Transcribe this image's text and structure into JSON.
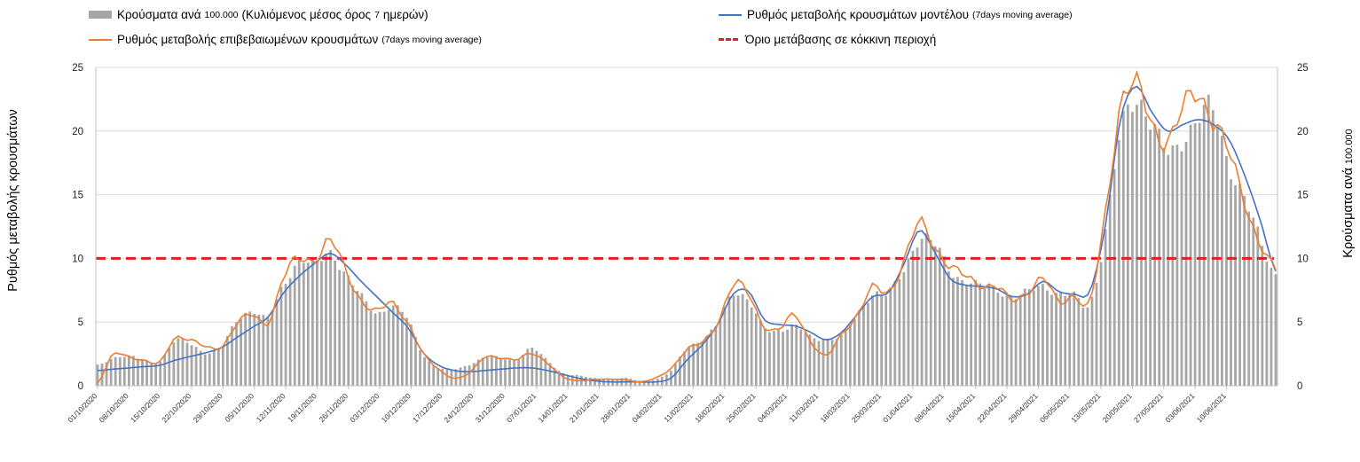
{
  "legend": {
    "bars_label": "Κρούσματα ανά",
    "bars_label_small": "100.000",
    "bars_label_rest": "(Κυλιόμενος μέσος όρος",
    "bars_label_small2": "7",
    "bars_label_end": "ημερών)",
    "orange_label": "Ρυθμός μεταβολής επιβεβαιωμένων κρουσμάτων",
    "orange_label_small": "(7days moving average)",
    "blue_label": "Ρυθμός μεταβολής κρουσμάτων μοντέλου",
    "blue_label_small": "(7days moving average)",
    "red_label": "Όριο μετάβασης σε κόκκινη περιοχή"
  },
  "axes": {
    "left_label": "Ρυθμός μεταβολής κρουσμάτων",
    "right_label": "Κρούσματα ανά",
    "right_label_small": "100.000"
  },
  "colors": {
    "bars": "#a6a6a6",
    "orange": "#ed7d31",
    "blue": "#4472c4",
    "threshold": "#e41f1f",
    "grid": "#d9d9d9"
  },
  "chart_data": {
    "type": "bar+line",
    "title": "",
    "xlabel": "",
    "ylabel_left": "Ρυθμός μεταβολής κρουσμάτων",
    "ylabel_right": "Κρούσματα ανά 100.000",
    "ylim": [
      0,
      25
    ],
    "yticks": [
      0,
      5,
      10,
      15,
      20,
      25
    ],
    "threshold": 10,
    "x_tick_labels": [
      "01/10/2020",
      "08/10/2020",
      "15/10/2020",
      "22/10/2020",
      "29/10/2020",
      "05/11/2020",
      "12/11/2020",
      "19/11/2020",
      "26/11/2020",
      "03/12/2020",
      "10/12/2020",
      "17/12/2020",
      "24/12/2020",
      "31/12/2020",
      "07/01/2021",
      "14/01/2021",
      "21/01/2021",
      "28/01/2021",
      "04/02/2021",
      "11/02/2021",
      "18/02/2021",
      "25/02/2021",
      "04/03/2021",
      "11/03/2021",
      "18/03/2021",
      "25/03/2021",
      "01/04/2021",
      "08/04/2021",
      "15/04/2021",
      "22/04/2021",
      "29/04/2021",
      "06/05/2021",
      "13/05/2021",
      "20/05/2021",
      "27/05/2021",
      "03/06/2021",
      "10/06/2021"
    ],
    "anchors_bars": [
      1.6,
      2.2,
      2.3,
      2.0,
      1.9,
      3.5,
      3.3,
      2.6,
      3.0,
      5.2,
      5.9,
      5.3,
      8.0,
      9.8,
      9.4,
      10.6,
      8.7,
      7.0,
      5.8,
      6.2,
      5.2,
      2.5,
      1.4,
      1.3,
      1.7,
      2.2,
      2.2,
      2.1,
      2.9,
      2.0,
      1.0,
      0.8,
      0.6,
      0.5,
      0.6,
      0.4,
      0.5,
      1.2,
      3.0,
      3.6,
      4.8,
      7.4,
      6.6,
      4.5,
      4.4,
      4.7,
      3.8,
      3.7,
      4.0,
      5.5,
      7.3,
      7.2,
      9.0,
      11.7,
      11.0,
      9.0,
      8.3,
      7.8,
      7.6,
      7.0,
      7.3,
      7.9,
      7.2,
      7.0,
      6.5,
      12.0,
      19.8,
      22.8,
      20.5,
      18.2,
      19.6,
      20.8,
      21.5,
      17.5,
      14.5,
      11.5,
      8.8
    ],
    "anchors_orange": [
      0.2,
      2.4,
      2.3,
      2.0,
      1.8,
      3.8,
      3.6,
      3.0,
      3.1,
      4.9,
      5.5,
      5.0,
      8.5,
      9.9,
      10.0,
      11.3,
      9.0,
      6.8,
      5.8,
      6.5,
      5.0,
      2.5,
      1.3,
      0.6,
      1.0,
      2.3,
      2.2,
      2.0,
      2.6,
      1.8,
      0.7,
      0.4,
      0.5,
      0.5,
      0.5,
      0.3,
      0.6,
      1.4,
      2.8,
      3.4,
      5.0,
      7.8,
      7.2,
      4.7,
      4.4,
      5.6,
      3.5,
      2.3,
      4.1,
      5.6,
      7.6,
      7.4,
      9.8,
      12.6,
      11.0,
      9.4,
      8.5,
      8.0,
      7.8,
      6.6,
      7.5,
      8.4,
      6.5,
      7.2,
      6.5,
      13.3,
      22.5,
      23.4,
      20.5,
      19.5,
      21.5,
      22.9,
      21.0,
      18.0,
      14.5,
      11.2,
      9.0
    ],
    "anchors_blue": [
      1.2,
      1.3,
      1.4,
      1.5,
      1.6,
      2.0,
      2.3,
      2.6,
      3.0,
      3.8,
      4.6,
      5.4,
      7.3,
      8.6,
      9.6,
      10.4,
      9.5,
      8.2,
      7.0,
      5.8,
      4.6,
      2.6,
      1.6,
      1.2,
      1.1,
      1.2,
      1.3,
      1.4,
      1.4,
      1.2,
      0.9,
      0.6,
      0.4,
      0.3,
      0.3,
      0.3,
      0.3,
      0.6,
      2.0,
      3.2,
      4.8,
      7.2,
      7.4,
      5.2,
      4.8,
      4.7,
      4.2,
      3.6,
      4.2,
      5.6,
      7.0,
      7.3,
      9.5,
      12.2,
      10.5,
      8.4,
      7.9,
      7.8,
      7.6,
      7.0,
      7.2,
      8.2,
      7.4,
      7.2,
      7.4,
      12.5,
      21.0,
      23.5,
      21.5,
      20.0,
      20.5,
      20.9,
      20.5,
      19.3,
      16.5,
      13.0,
      9.0
    ]
  }
}
